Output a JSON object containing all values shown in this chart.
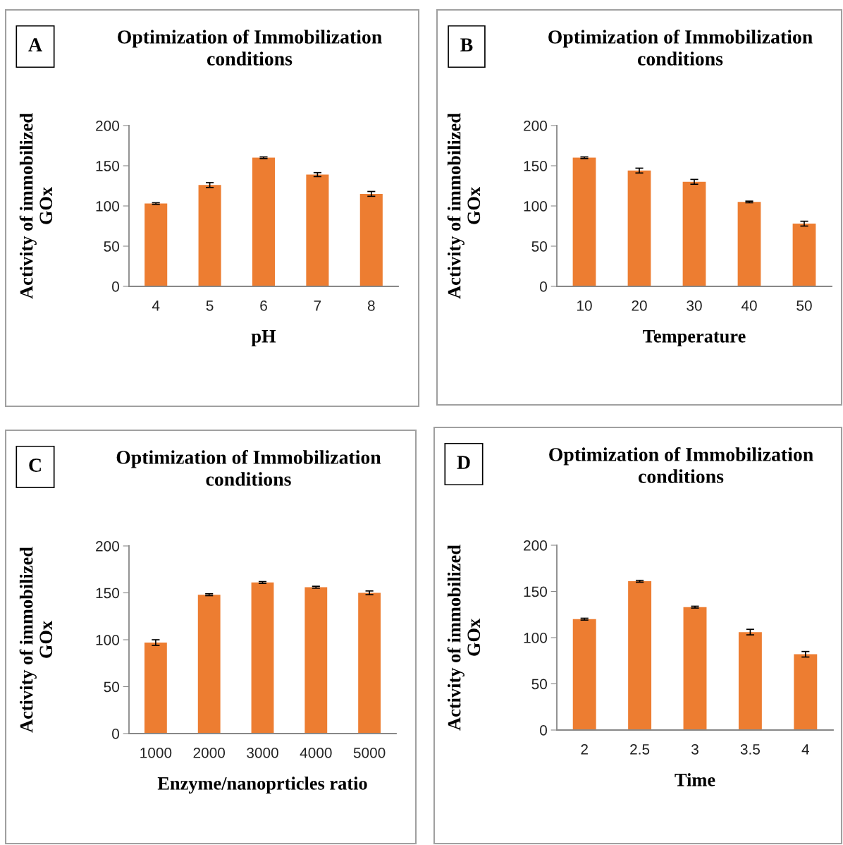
{
  "chart_data": [
    {
      "type": "bar",
      "title": "Optimization of Immobilization\nconditions",
      "xlabel": "pH",
      "ylabel": "Activity of immobilized\nGOx",
      "annotations": [
        "A"
      ],
      "categories": [
        "4",
        "5",
        "6",
        "7",
        "8"
      ],
      "series": [
        {
          "color": "#ed7d31",
          "values": [
            103,
            126,
            160,
            139,
            115
          ],
          "errors": [
            1,
            3,
            1,
            2.5,
            3
          ]
        }
      ],
      "ylim": [
        0,
        200
      ],
      "yticks": [
        0,
        50,
        100,
        150,
        200
      ],
      "grid": false,
      "legend": false
    },
    {
      "type": "bar",
      "title": "Optimization of Immobilization\nconditions",
      "xlabel": "Temperature",
      "ylabel": "Activity of immobilized\nGOx",
      "annotations": [
        "B"
      ],
      "categories": [
        "10",
        "20",
        "30",
        "40",
        "50"
      ],
      "series": [
        {
          "color": "#ed7d31",
          "values": [
            160,
            144,
            130,
            105,
            78
          ],
          "errors": [
            1,
            3,
            3,
            1,
            3
          ]
        }
      ],
      "ylim": [
        0,
        200
      ],
      "yticks": [
        0,
        50,
        100,
        150,
        200
      ],
      "grid": false,
      "legend": false
    },
    {
      "type": "bar",
      "title": "Optimization of Immobilization\nconditions",
      "xlabel": "Enzyme/nanoprticles ratio",
      "ylabel": "Activity of immobilized\nGOx",
      "annotations": [
        "C"
      ],
      "categories": [
        "1000",
        "2000",
        "3000",
        "4000",
        "5000"
      ],
      "series": [
        {
          "color": "#ed7d31",
          "values": [
            97,
            148,
            161,
            156,
            150
          ],
          "errors": [
            3,
            1,
            1,
            1,
            2
          ]
        }
      ],
      "ylim": [
        0,
        200
      ],
      "yticks": [
        0,
        50,
        100,
        150,
        200
      ],
      "grid": false,
      "legend": false
    },
    {
      "type": "bar",
      "title": "Optimization of Immobilization\nconditions",
      "xlabel": "Time",
      "ylabel": "Activity of immobilized\nGOx",
      "annotations": [
        "D"
      ],
      "categories": [
        "2",
        "2.5",
        "3",
        "3.5",
        "4"
      ],
      "series": [
        {
          "color": "#ed7d31",
          "values": [
            120,
            161,
            133,
            106,
            82
          ],
          "errors": [
            1,
            1,
            1,
            3,
            3
          ]
        }
      ],
      "ylim": [
        0,
        200
      ],
      "yticks": [
        0,
        50,
        100,
        150,
        200
      ],
      "grid": false,
      "legend": false
    }
  ]
}
